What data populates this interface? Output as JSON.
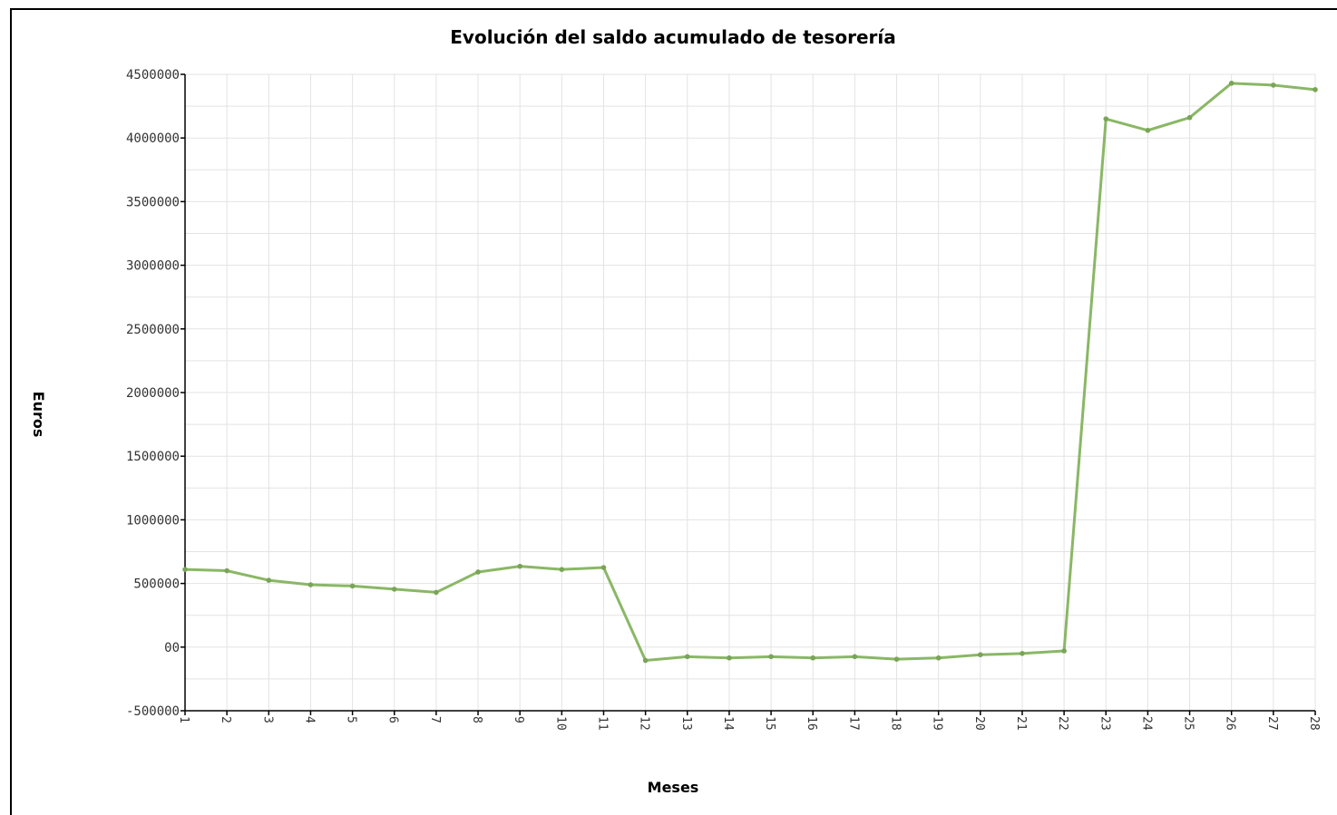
{
  "chart_data": {
    "type": "line",
    "title": "Evolución del saldo acumulado de tesorería",
    "xlabel": "Meses",
    "ylabel": "Euros",
    "ylim": [
      -500000,
      4500000
    ],
    "yticks": [
      {
        "value": 4500000,
        "label": "4500000"
      },
      {
        "value": 4000000,
        "label": "4000000"
      },
      {
        "value": 3500000,
        "label": "3500000"
      },
      {
        "value": 3000000,
        "label": "3000000"
      },
      {
        "value": 2500000,
        "label": "2500000"
      },
      {
        "value": 2000000,
        "label": "2000000"
      },
      {
        "value": 1500000,
        "label": "1500000"
      },
      {
        "value": 1000000,
        "label": "1000000"
      },
      {
        "value": 500000,
        "label": "500000"
      },
      {
        "value": 0,
        "label": "00"
      },
      {
        "value": -500000,
        "label": "-500000"
      }
    ],
    "categories": [
      "1",
      "2",
      "3",
      "4",
      "5",
      "6",
      "7",
      "8",
      "9",
      "10",
      "11",
      "12",
      "13",
      "14",
      "15",
      "16",
      "17",
      "18",
      "19",
      "20",
      "21",
      "22",
      "23",
      "24",
      "25",
      "26",
      "27",
      "28"
    ],
    "grid": true,
    "series": [
      {
        "color": "#8ab765",
        "values": [
          610000,
          600000,
          525000,
          490000,
          480000,
          455000,
          430000,
          590000,
          635000,
          610000,
          625000,
          -105000,
          -75000,
          -85000,
          -75000,
          -85000,
          -75000,
          -95000,
          -85000,
          -60000,
          -50000,
          -30000,
          4150000,
          4060000,
          4160000,
          4430000,
          4415000,
          4380000
        ]
      }
    ]
  }
}
